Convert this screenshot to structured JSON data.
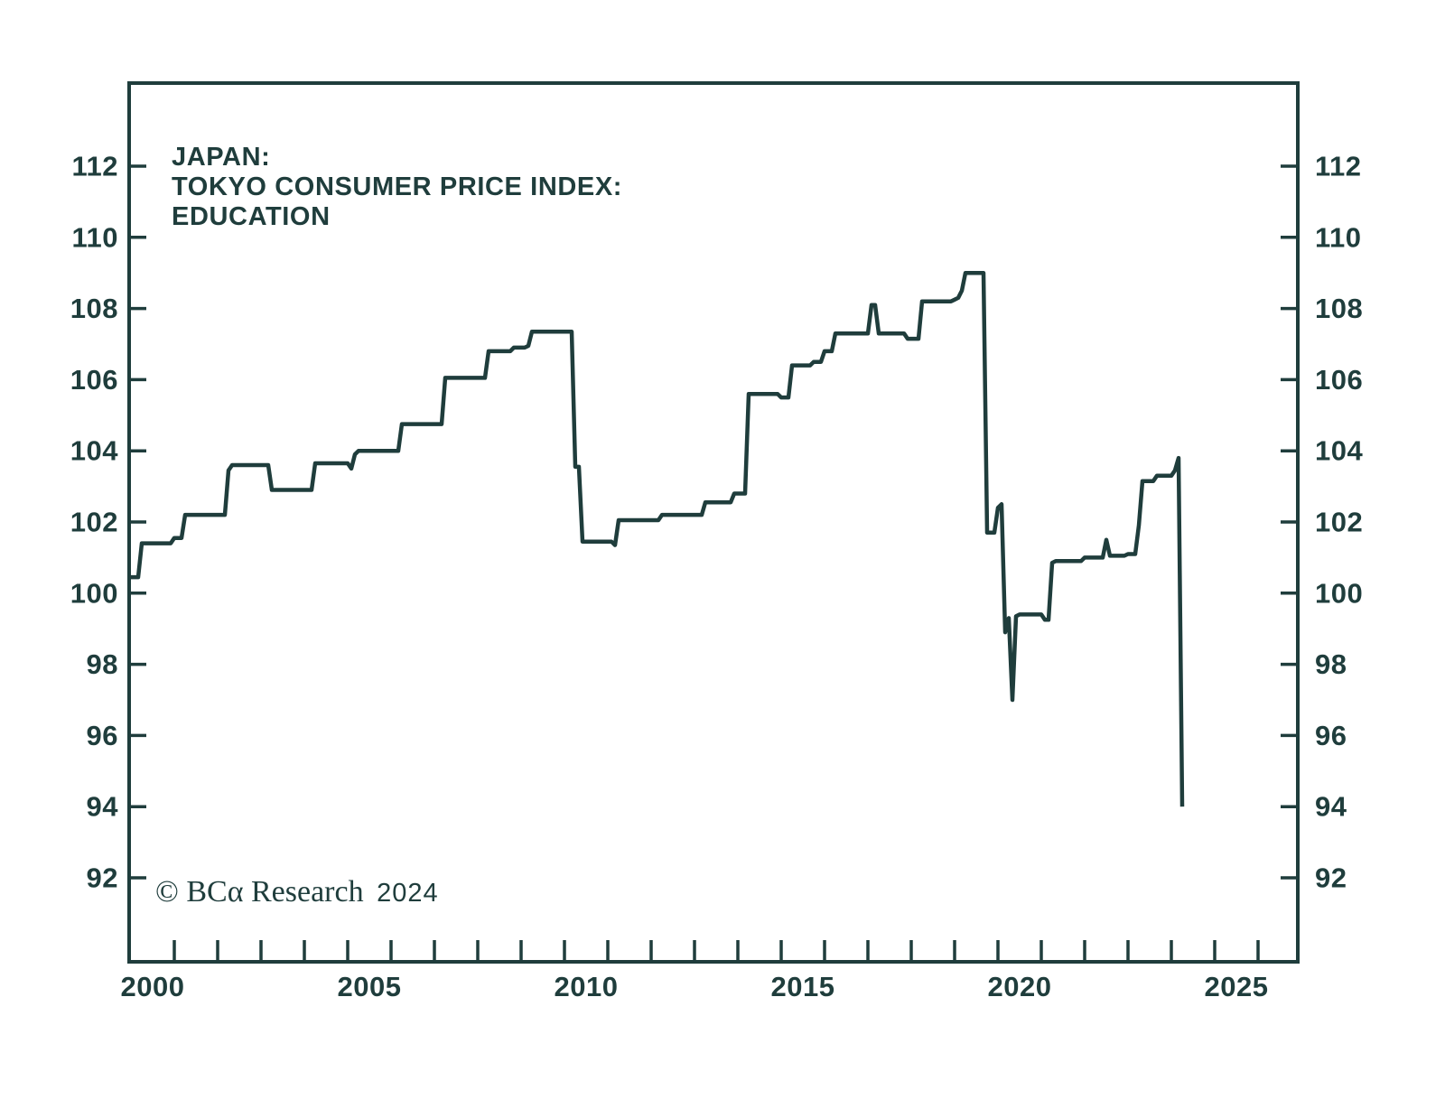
{
  "title": {
    "line1": "JAPAN:",
    "line2": "TOKYO CONSUMER PRICE INDEX:",
    "line3": "EDUCATION"
  },
  "copyright": {
    "text": "© BCα Research",
    "year": "2024"
  },
  "colors": {
    "ink": "#1f3d3c",
    "background": "#ffffff"
  },
  "chart_data": {
    "type": "line",
    "title": "JAPAN: TOKYO CONSUMER PRICE INDEX: EDUCATION",
    "series_name": "Tokyo Consumer Price Index: Education",
    "grid": false,
    "legend_position": "none",
    "x_axis": {
      "unit": "year",
      "range": [
        2000,
        2027
      ],
      "minor_tick_every_years": 1,
      "label_years": [
        "2000",
        "2005",
        "2010",
        "2015",
        "2020",
        "2025"
      ]
    },
    "y_axis": {
      "ticks": [
        "112",
        "110",
        "108",
        "106",
        "104",
        "102",
        "100",
        "98",
        "96",
        "94",
        "92"
      ],
      "tick_values": [
        112,
        110,
        108,
        106,
        104,
        102,
        100,
        98,
        96,
        94,
        92
      ],
      "displayed_range": [
        89.6,
        114.3
      ],
      "sides": "both"
    },
    "frequency": "monthly",
    "monthly_values_by_year": {
      "2000": [
        100.45,
        100.45,
        100.45,
        101.4,
        101.4,
        101.4,
        101.4,
        101.4,
        101.4,
        101.4,
        101.4,
        101.4
      ],
      "2001": [
        101.55,
        101.55,
        101.55,
        102.2,
        102.2,
        102.2,
        102.2,
        102.2,
        102.2,
        102.2,
        102.2,
        102.2
      ],
      "2002": [
        102.2,
        102.2,
        102.2,
        103.45,
        103.6,
        103.6,
        103.6,
        103.6,
        103.6,
        103.6,
        103.6,
        103.6
      ],
      "2003": [
        103.6,
        103.6,
        103.6,
        102.9,
        102.9,
        102.9,
        102.9,
        102.9,
        102.9,
        102.9,
        102.9,
        102.9
      ],
      "2004": [
        102.9,
        102.9,
        102.9,
        103.65,
        103.65,
        103.65,
        103.65,
        103.65,
        103.65,
        103.65,
        103.65,
        103.65
      ],
      "2005": [
        103.65,
        103.5,
        103.9,
        104.0,
        104.0,
        104.0,
        104.0,
        104.0,
        104.0,
        104.0,
        104.0,
        104.0
      ],
      "2006": [
        104.0,
        104.0,
        104.0,
        104.75,
        104.75,
        104.75,
        104.75,
        104.75,
        104.75,
        104.75,
        104.75,
        104.75
      ],
      "2007": [
        104.75,
        104.75,
        104.75,
        106.05,
        106.05,
        106.05,
        106.05,
        106.05,
        106.05,
        106.05,
        106.05,
        106.05
      ],
      "2008": [
        106.05,
        106.05,
        106.05,
        106.8,
        106.8,
        106.8,
        106.8,
        106.8,
        106.8,
        106.8,
        106.9,
        106.9
      ],
      "2009": [
        106.9,
        106.9,
        106.95,
        107.35,
        107.35,
        107.35,
        107.35,
        107.35,
        107.35,
        107.35,
        107.35,
        107.35
      ],
      "2010": [
        107.35,
        107.35,
        107.35,
        103.55,
        103.55,
        101.45,
        101.45,
        101.45,
        101.45,
        101.45,
        101.45,
        101.45
      ],
      "2011": [
        101.45,
        101.45,
        101.35,
        102.05,
        102.05,
        102.05,
        102.05,
        102.05,
        102.05,
        102.05,
        102.05,
        102.05
      ],
      "2012": [
        102.05,
        102.05,
        102.05,
        102.2,
        102.2,
        102.2,
        102.2,
        102.2,
        102.2,
        102.2,
        102.2,
        102.2
      ],
      "2013": [
        102.2,
        102.2,
        102.2,
        102.55,
        102.55,
        102.55,
        102.55,
        102.55,
        102.55,
        102.55,
        102.55,
        102.8
      ],
      "2014": [
        102.8,
        102.8,
        102.8,
        105.6,
        105.6,
        105.6,
        105.6,
        105.6,
        105.6,
        105.6,
        105.6,
        105.6
      ],
      "2015": [
        105.5,
        105.5,
        105.5,
        106.4,
        106.4,
        106.4,
        106.4,
        106.4,
        106.4,
        106.5,
        106.5,
        106.5
      ],
      "2016": [
        106.8,
        106.8,
        106.8,
        107.3,
        107.3,
        107.3,
        107.3,
        107.3,
        107.3,
        107.3,
        107.3,
        107.3
      ],
      "2017": [
        107.3,
        108.1,
        108.1,
        107.3,
        107.3,
        107.3,
        107.3,
        107.3,
        107.3,
        107.3,
        107.3,
        107.15
      ],
      "2018": [
        107.15,
        107.15,
        107.15,
        108.2,
        108.2,
        108.2,
        108.2,
        108.2,
        108.2,
        108.2,
        108.2,
        108.2
      ],
      "2019": [
        108.25,
        108.3,
        108.5,
        109.0,
        109.0,
        109.0,
        109.0,
        109.0,
        109.0,
        101.7,
        101.7,
        101.7
      ],
      "2020": [
        102.4,
        102.5,
        98.9,
        99.3,
        97.0,
        99.35,
        99.4,
        99.4,
        99.4,
        99.4,
        99.4,
        99.4
      ],
      "2021": [
        99.4,
        99.25,
        99.25,
        100.85,
        100.9,
        100.9,
        100.9,
        100.9,
        100.9,
        100.9,
        100.9,
        100.9
      ],
      "2022": [
        101.0,
        101.0,
        101.0,
        101.0,
        101.0,
        101.0,
        101.5,
        101.05,
        101.05,
        101.05,
        101.05,
        101.05
      ],
      "2023": [
        101.1,
        101.1,
        101.1,
        101.9,
        103.15,
        103.15,
        103.15,
        103.15,
        103.3,
        103.3,
        103.3,
        103.3
      ],
      "2024": [
        103.3,
        103.45,
        103.8,
        94.0
      ]
    }
  }
}
